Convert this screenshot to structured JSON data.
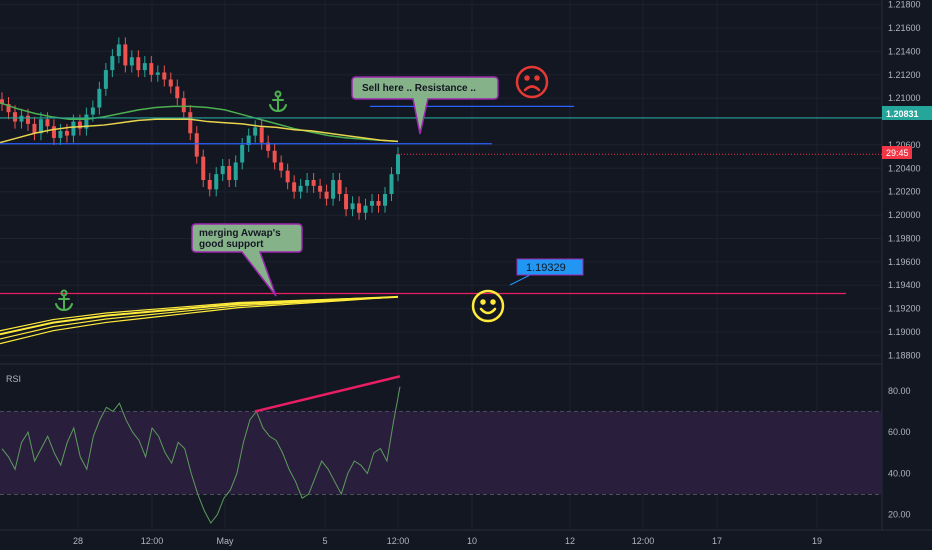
{
  "chart_data": [
    {
      "type": "line",
      "symbol_pane": "price",
      "x_ticks": [
        "28",
        "12:00",
        "May",
        "5",
        "12:00",
        "10",
        "12",
        "12:00",
        "17",
        "19"
      ],
      "y_ticks": [
        "1.21800",
        "1.21600",
        "1.21400",
        "1.21200",
        "1.21000",
        "1.20600",
        "1.20400",
        "1.20200",
        "1.20000",
        "1.19800",
        "1.19600",
        "1.19400",
        "1.19200",
        "1.19000",
        "1.18800"
      ],
      "ylim": [
        1.1876,
        1.2184
      ],
      "current_price_badge": "1.20831",
      "countdown_badge": "29:45",
      "level_badge": "1.19329",
      "close_price": [
        1.2095,
        1.2088,
        1.208,
        1.2085,
        1.2078,
        1.207,
        1.2082,
        1.2076,
        1.2066,
        1.2072,
        1.2068,
        1.208,
        1.2074,
        1.2086,
        1.2092,
        1.2108,
        1.2124,
        1.2136,
        1.2146,
        1.2128,
        1.2135,
        1.2124,
        1.213,
        1.212,
        1.2122,
        1.2116,
        1.211,
        1.21,
        1.2088,
        1.207,
        1.205,
        1.203,
        1.2022,
        1.2035,
        1.2042,
        1.203,
        1.2045,
        1.206,
        1.2068,
        1.2075,
        1.2062,
        1.2055,
        1.2045,
        1.2038,
        1.2028,
        1.202,
        1.2025,
        1.203,
        1.2025,
        1.202,
        1.2014,
        1.203,
        1.2018,
        1.2005,
        1.201,
        1.2002,
        1.2008,
        1.2012,
        1.2008,
        1.2018,
        1.2035,
        1.2052
      ],
      "series": [
        {
          "name": "",
          "color": "#4caf50",
          "values": [
            1.2096,
            1.2091,
            1.2087,
            1.2084,
            1.2082,
            1.2082,
            1.2084,
            1.2087,
            1.209,
            1.2092,
            1.2093,
            1.2093,
            1.2092,
            1.209,
            1.2086,
            1.2082,
            1.2078,
            1.2074,
            1.2071,
            1.2068,
            1.2066,
            1.2065,
            1.2064,
            1.2063
          ]
        },
        {
          "name": "",
          "color": "#e8d44d",
          "values": [
            1.2062,
            1.2066,
            1.207,
            1.2073,
            1.2075,
            1.2076,
            1.2077,
            1.2079,
            1.2081,
            1.2082,
            1.2082,
            1.2082,
            1.208,
            1.2079,
            1.2078,
            1.2076,
            1.2075,
            1.2073,
            1.2072,
            1.207,
            1.2068,
            1.2066,
            1.2064,
            1.2063
          ]
        },
        {
          "name": "",
          "color": "#ffeb3b",
          "values": [
            1.1898,
            1.1903,
            1.1908,
            1.1911,
            1.1914,
            1.1916,
            1.1918,
            1.192,
            1.1922,
            1.1924,
            1.1925,
            1.1926,
            1.1927,
            1.1928,
            1.1929,
            1.193
          ]
        }
      ],
      "horizontal_levels": [
        {
          "color": "#26a69a",
          "value": 1.20831
        },
        {
          "color": "#2962ff",
          "value": 1.2093
        },
        {
          "color": "#2962ff",
          "value": 1.2061
        },
        {
          "color": "#e91e63",
          "value": 1.19329
        }
      ],
      "annotations": [
        {
          "text": "Sell here .. Resistance ..",
          "target": 1.2061
        },
        {
          "text": "merging Avwap's good support",
          "target": 1.1929
        }
      ]
    },
    {
      "type": "line",
      "symbol_pane": "oscillator",
      "title": "RSI",
      "y_ticks": [
        "80.00",
        "60.00",
        "40.00",
        "20.00"
      ],
      "ylim": [
        16,
        92
      ],
      "band": [
        30,
        70
      ],
      "series": [
        {
          "name": "RSI",
          "color": "#7e57c2",
          "values": [
            52,
            48,
            42,
            55,
            60,
            46,
            52,
            58,
            50,
            44,
            55,
            62,
            48,
            42,
            58,
            66,
            72,
            70,
            74,
            66,
            60,
            56,
            48,
            62,
            58,
            50,
            45,
            55,
            52,
            40,
            30,
            22,
            16,
            20,
            28,
            32,
            40,
            55,
            66,
            70,
            62,
            58,
            56,
            50,
            42,
            36,
            28,
            30,
            38,
            46,
            42,
            36,
            30,
            40,
            46,
            44,
            40,
            50,
            52,
            46,
            65,
            82
          ]
        }
      ],
      "trendline": {
        "color": "#e91e63",
        "from": 70,
        "to": 87
      }
    }
  ],
  "labels": {
    "rsi_title": "RSI",
    "note_sell": "Sell here .. Resistance ..",
    "note_support_line1": "merging Avwap's",
    "note_support_line2": "good support",
    "level_badge": "1.19329",
    "price_badge": "1.20831",
    "countdown_badge": "29:45"
  },
  "icons": {
    "anchor_top": "anchor-icon",
    "anchor_bottom": "anchor-icon",
    "sad_face": "sad-face-icon",
    "happy_face": "happy-face-icon"
  },
  "colors": {
    "background": "#131722",
    "grid": "#1e222d",
    "up": "#26a69a",
    "down": "#ef5350",
    "rsi_band": "#2a1e3d",
    "note_fill": "#86b28a",
    "note_stroke": "#9c27b0",
    "level_badge": "#2196f3",
    "price_badge": "#26a69a",
    "countdown_badge": "#f23645"
  }
}
